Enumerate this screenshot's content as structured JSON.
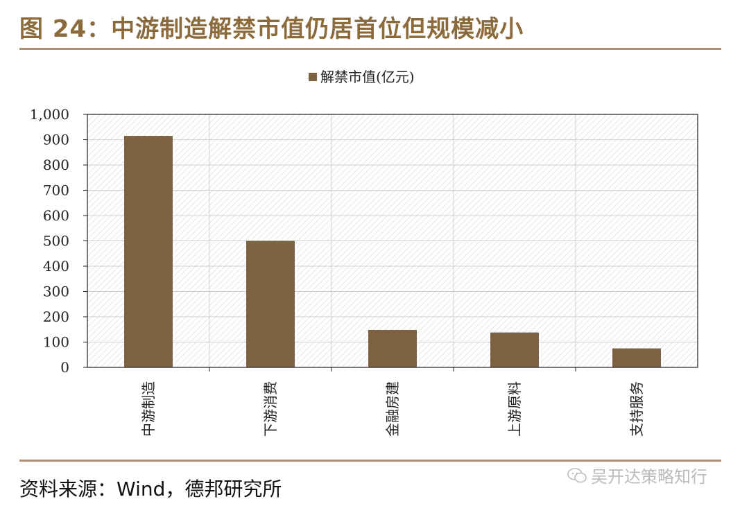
{
  "header": {
    "title": "图 24：中游制造解禁市值仍居首位但规模减小"
  },
  "footer": {
    "source": "资料来源：Wind，德邦研究所",
    "watermark": "吴开达策略知行"
  },
  "colors": {
    "accent": "#8b6a3c",
    "bar": "#7d6240",
    "rule": "#b09270"
  },
  "chart_data": {
    "type": "bar",
    "categories": [
      "中游制造",
      "下游消费",
      "金融房建",
      "上游原料",
      "支持服务"
    ],
    "series": [
      {
        "name": "解禁市值(亿元)",
        "values": [
          915,
          500,
          148,
          138,
          75
        ]
      }
    ],
    "yticks": [
      "0",
      "100",
      "200",
      "300",
      "400",
      "500",
      "600",
      "700",
      "800",
      "900",
      "1,000"
    ],
    "ylim": [
      0,
      1000
    ],
    "grid": true,
    "legend": "top"
  }
}
